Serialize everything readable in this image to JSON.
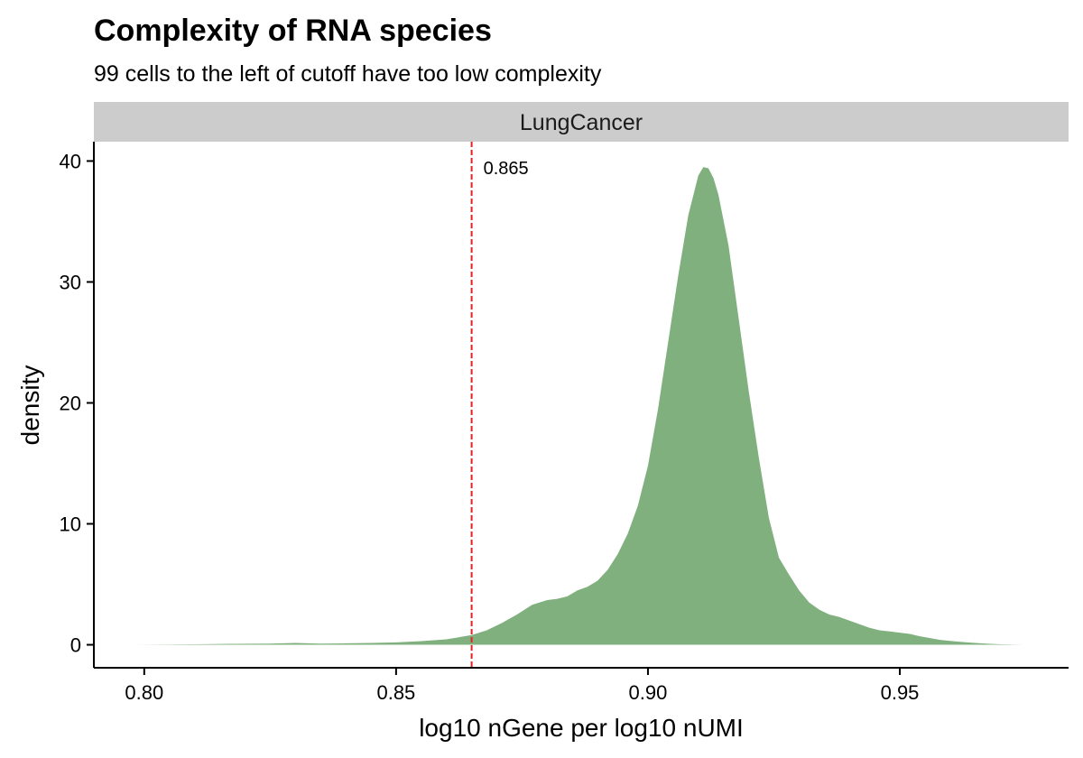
{
  "chart_data": {
    "type": "area",
    "title": "Complexity of RNA species",
    "subtitle": "99 cells to the left of cutoff have too low complexity",
    "facet_label": "LungCancer",
    "xlabel": "log10 nGene per log10 nUMI",
    "ylabel": "density",
    "xlim": [
      0.79,
      0.9835
    ],
    "ylim": [
      -1.9,
      41.6
    ],
    "x_ticks": [
      0.8,
      0.85,
      0.9,
      0.95
    ],
    "x_tick_labels": [
      "0.80",
      "0.85",
      "0.90",
      "0.95"
    ],
    "y_ticks": [
      0,
      10,
      20,
      30,
      40
    ],
    "y_tick_labels": [
      "0",
      "10",
      "20",
      "30",
      "40"
    ],
    "grid": false,
    "legend": "none",
    "fill_color": "#7fb07d",
    "cutoff": {
      "value": 0.865,
      "label": "0.865",
      "color": "#e32222"
    },
    "series": [
      {
        "x": [
          0.798,
          0.805,
          0.812,
          0.818,
          0.825,
          0.83,
          0.835,
          0.84,
          0.845,
          0.85,
          0.855,
          0.86,
          0.865,
          0.868,
          0.871,
          0.874,
          0.877,
          0.88,
          0.882,
          0.884,
          0.886,
          0.888,
          0.89,
          0.892,
          0.894,
          0.896,
          0.898,
          0.9,
          0.902,
          0.904,
          0.906,
          0.908,
          0.91,
          0.911,
          0.912,
          0.913,
          0.914,
          0.916,
          0.918,
          0.92,
          0.922,
          0.924,
          0.926,
          0.928,
          0.93,
          0.932,
          0.934,
          0.936,
          0.938,
          0.94,
          0.942,
          0.944,
          0.946,
          0.948,
          0.95,
          0.952,
          0.954,
          0.956,
          0.958,
          0.96,
          0.962,
          0.964,
          0.966,
          0.968,
          0.97,
          0.972,
          0.9745
        ],
        "y": [
          0.0,
          0.02,
          0.05,
          0.08,
          0.1,
          0.15,
          0.1,
          0.12,
          0.15,
          0.2,
          0.3,
          0.45,
          0.8,
          1.2,
          1.8,
          2.5,
          3.3,
          3.7,
          3.8,
          4.0,
          4.5,
          4.8,
          5.3,
          6.2,
          7.5,
          9.2,
          11.5,
          14.8,
          19.5,
          25.0,
          30.5,
          35.5,
          38.8,
          39.5,
          39.4,
          38.6,
          37.2,
          33.0,
          27.0,
          21.0,
          15.5,
          10.5,
          7.2,
          5.8,
          4.5,
          3.5,
          2.9,
          2.5,
          2.3,
          2.0,
          1.7,
          1.4,
          1.2,
          1.1,
          1.0,
          0.9,
          0.7,
          0.55,
          0.4,
          0.32,
          0.25,
          0.18,
          0.12,
          0.08,
          0.04,
          0.02,
          0.0
        ]
      }
    ]
  }
}
